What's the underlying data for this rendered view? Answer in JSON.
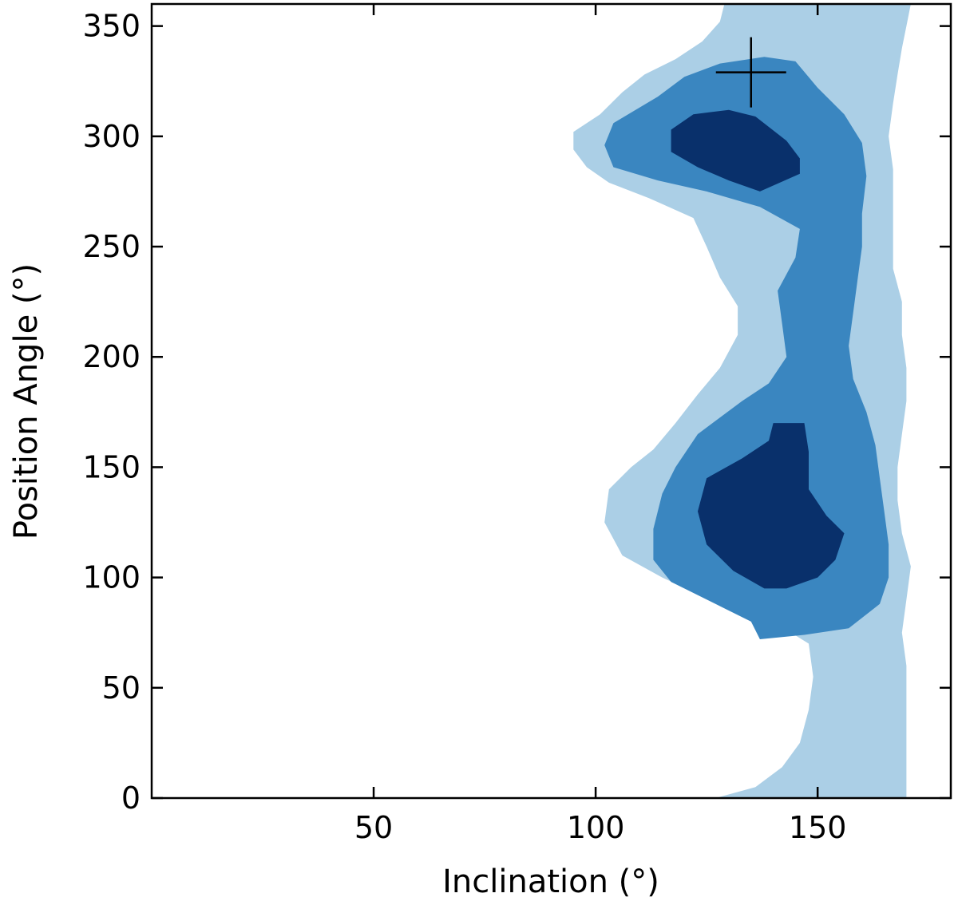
{
  "chart_data": {
    "type": "contour",
    "xlabel": "Inclination (°)",
    "ylabel": "Position Angle (°)",
    "xlim": [
      0,
      180
    ],
    "ylim": [
      0,
      360
    ],
    "x_ticks": [
      50,
      100,
      150
    ],
    "y_ticks": [
      0,
      50,
      100,
      150,
      200,
      250,
      300,
      350
    ],
    "grid": false,
    "legend": "none",
    "colors": {
      "outer": "#abcfe6",
      "middle": "#3a86c0",
      "inner": "#09306b"
    },
    "levels": [
      {
        "name": "outer",
        "polygons": [
          [
            [
              127,
              0
            ],
            [
              136,
              5
            ],
            [
              142,
              14
            ],
            [
              146,
              25
            ],
            [
              148,
              40
            ],
            [
              149,
              55
            ],
            [
              148,
              70
            ],
            [
              140,
              80
            ],
            [
              128,
              88
            ],
            [
              115,
              100
            ],
            [
              106,
              110
            ],
            [
              102,
              125
            ],
            [
              103,
              140
            ],
            [
              108,
              150
            ],
            [
              113,
              158
            ],
            [
              118,
              170
            ],
            [
              123,
              183
            ],
            [
              128,
              195
            ],
            [
              132,
              210
            ],
            [
              132,
              223
            ],
            [
              128,
              236
            ],
            [
              125,
              250
            ],
            [
              122,
              263
            ],
            [
              112,
              272
            ],
            [
              103,
              279
            ],
            [
              98,
              286
            ],
            [
              95,
              294
            ],
            [
              95,
              302
            ],
            [
              101,
              310
            ],
            [
              106,
              320
            ],
            [
              111,
              328
            ],
            [
              118,
              335
            ],
            [
              124,
              343
            ],
            [
              128,
              352
            ],
            [
              129,
              360
            ],
            [
              171,
              360
            ],
            [
              170,
              350
            ],
            [
              169,
              340
            ],
            [
              168,
              328
            ],
            [
              167,
              315
            ],
            [
              166,
              300
            ],
            [
              167,
              285
            ],
            [
              167,
              270
            ],
            [
              167,
              255
            ],
            [
              167,
              240
            ],
            [
              169,
              225
            ],
            [
              169,
              210
            ],
            [
              170,
              195
            ],
            [
              170,
              180
            ],
            [
              169,
              165
            ],
            [
              168,
              150
            ],
            [
              168,
              135
            ],
            [
              169,
              120
            ],
            [
              171,
              105
            ],
            [
              170,
              90
            ],
            [
              169,
              75
            ],
            [
              170,
              60
            ],
            [
              170,
              45
            ],
            [
              170,
              30
            ],
            [
              170,
              15
            ],
            [
              170,
              0
            ]
          ]
        ]
      },
      {
        "name": "middle",
        "polygons": [
          [
            [
              137,
              72
            ],
            [
              135,
              80
            ],
            [
              127,
              88
            ],
            [
              117,
              98
            ],
            [
              113,
              108
            ],
            [
              113,
              122
            ],
            [
              115,
              138
            ],
            [
              118,
              150
            ],
            [
              123,
              165
            ],
            [
              133,
              180
            ],
            [
              139,
              188
            ],
            [
              143,
              200
            ],
            [
              142,
              215
            ],
            [
              141,
              230
            ],
            [
              145,
              245
            ],
            [
              146,
              258
            ],
            [
              137,
              268
            ],
            [
              125,
              275
            ],
            [
              114,
              280
            ],
            [
              104,
              286
            ],
            [
              102,
              296
            ],
            [
              104,
              306
            ],
            [
              114,
              318
            ],
            [
              120,
              327
            ],
            [
              128,
              333
            ],
            [
              138,
              336
            ],
            [
              145,
              334
            ],
            [
              150,
              322
            ],
            [
              156,
              310
            ],
            [
              160,
              297
            ],
            [
              161,
              282
            ],
            [
              160,
              265
            ],
            [
              160,
              250
            ],
            [
              159,
              235
            ],
            [
              158,
              220
            ],
            [
              157,
              205
            ],
            [
              158,
              190
            ],
            [
              161,
              175
            ],
            [
              163,
              160
            ],
            [
              164,
              145
            ],
            [
              165,
              130
            ],
            [
              166,
              115
            ],
            [
              166,
              100
            ],
            [
              164,
              88
            ],
            [
              157,
              77
            ],
            [
              147,
              74
            ]
          ]
        ]
      },
      {
        "name": "inner",
        "polygons": [
          [
            [
              138,
              95
            ],
            [
              131,
              103
            ],
            [
              125,
              115
            ],
            [
              123,
              130
            ],
            [
              125,
              145
            ],
            [
              133,
              154
            ],
            [
              139,
              162
            ],
            [
              140,
              170
            ],
            [
              147,
              170
            ],
            [
              148,
              157
            ],
            [
              148,
              140
            ],
            [
              152,
              128
            ],
            [
              156,
              120
            ],
            [
              154,
              108
            ],
            [
              150,
              100
            ],
            [
              143,
              95
            ]
          ],
          [
            [
              137,
              275
            ],
            [
              130,
              280
            ],
            [
              123,
              286
            ],
            [
              117,
              293
            ],
            [
              117,
              303
            ],
            [
              122,
              310
            ],
            [
              130,
              312
            ],
            [
              136,
              309
            ],
            [
              143,
              298
            ],
            [
              146,
              290
            ],
            [
              146,
              283
            ]
          ]
        ]
      }
    ],
    "marker": {
      "type": "cross",
      "x": 135,
      "y": 329
    }
  }
}
